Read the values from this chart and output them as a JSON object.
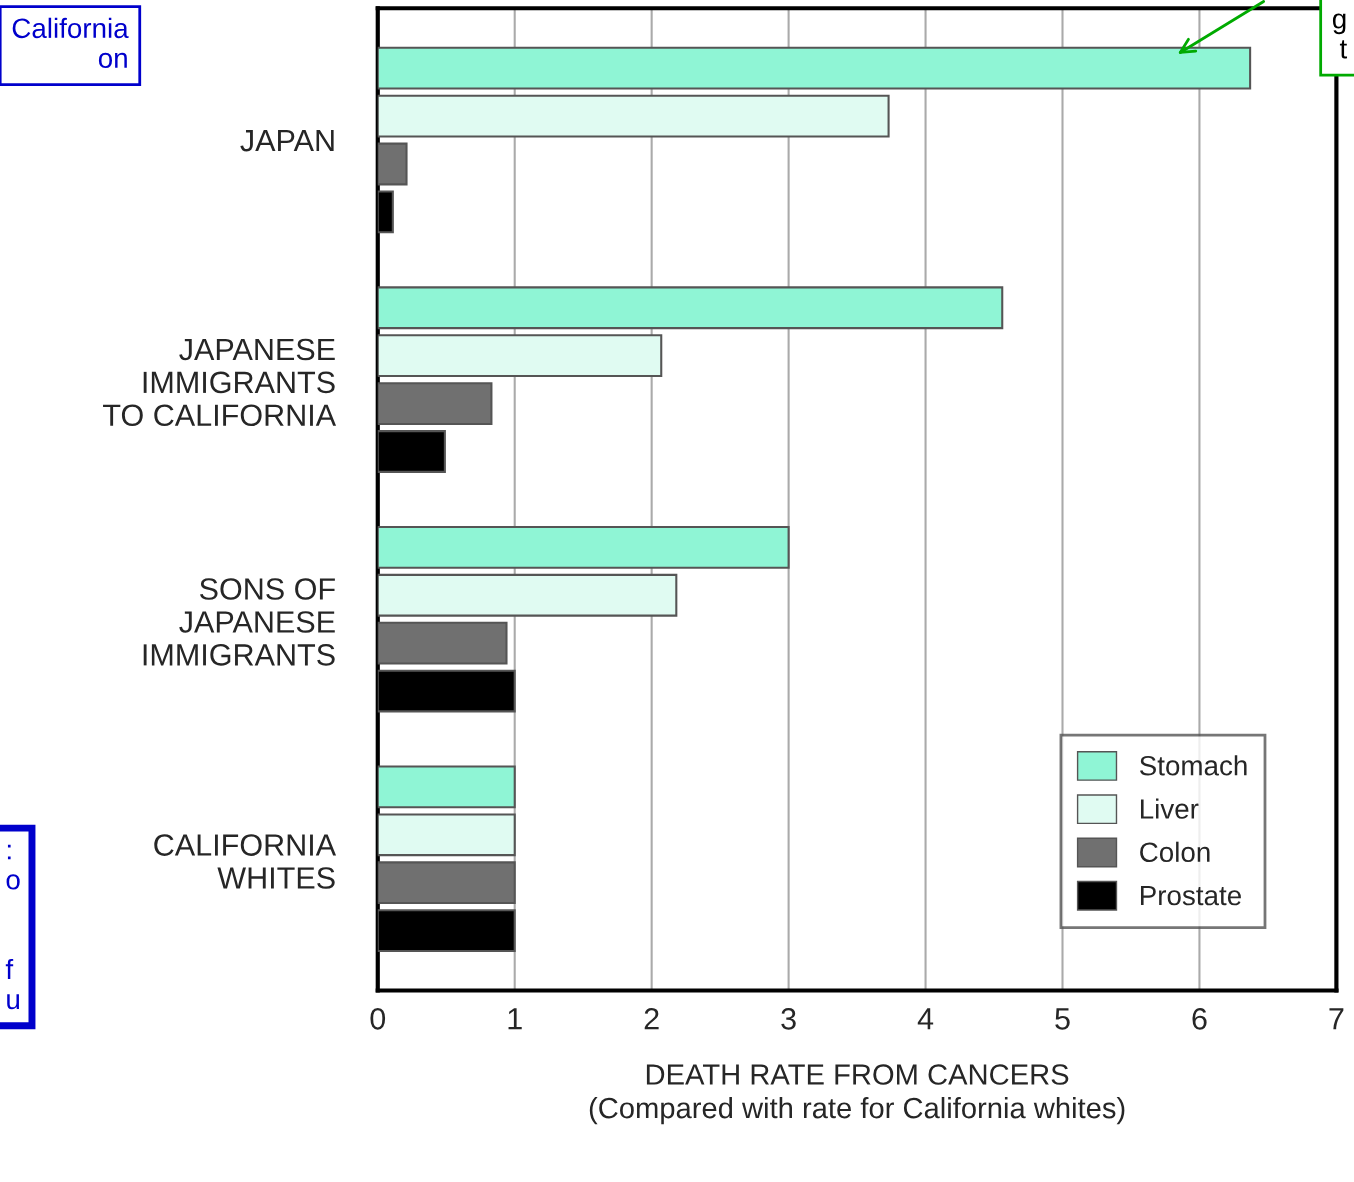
{
  "chart_data": {
    "type": "bar",
    "orientation": "horizontal",
    "xlabel": "DEATH RATE FROM CANCERS\n(Compared with rate for California whites)",
    "categories": [
      "JAPAN",
      "JAPANESE\nIMMIGRANTS\nTO CALIFORNIA",
      "SONS OF\nJAPANESE\nIMMIGRANTS",
      "CALIFORNIA\nWHITES"
    ],
    "series": [
      {
        "name": "Stomach",
        "color": "#8ff5d5",
        "values": [
          6.37,
          4.56,
          3.0,
          1.0
        ]
      },
      {
        "name": "Liver",
        "color": "#e0fbf2",
        "values": [
          3.73,
          2.07,
          2.18,
          1.0
        ]
      },
      {
        "name": "Colon",
        "color": "#707070",
        "values": [
          0.21,
          0.83,
          0.94,
          1.0
        ]
      },
      {
        "name": "Prostate",
        "color": "#000000",
        "values": [
          0.11,
          0.49,
          1.0,
          1.0
        ]
      }
    ],
    "xlim": [
      0,
      7
    ],
    "xticks": [
      0,
      1,
      2,
      3,
      4,
      5,
      6,
      7
    ],
    "grid": "x",
    "legend": "bottom right",
    "annotations": [
      "California\non",
      ":\no\n\n\nf\nu",
      "g\nt"
    ]
  }
}
